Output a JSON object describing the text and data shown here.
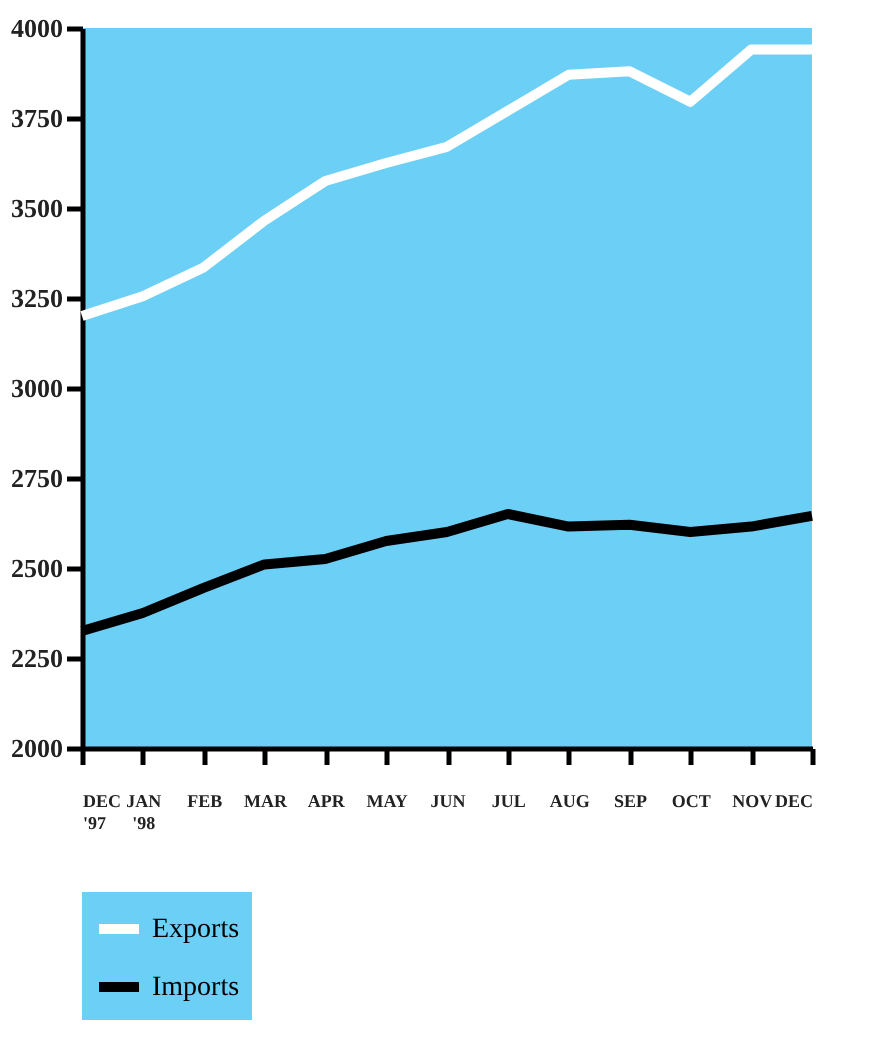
{
  "chart_data": {
    "type": "line",
    "categories": [
      "DEC\n'97",
      "JAN\n'98",
      "FEB",
      "MAR",
      "APR",
      "MAY",
      "JUN",
      "JUL",
      "AUG",
      "SEP",
      "OCT",
      "NOV",
      "DEC"
    ],
    "series": [
      {
        "name": "Exports",
        "color": "#ffffff",
        "values": [
          3200,
          3255,
          3335,
          3465,
          3575,
          3625,
          3670,
          3770,
          3870,
          3880,
          3795,
          3940,
          3940
        ]
      },
      {
        "name": "Imports",
        "color": "#000000",
        "values": [
          2325,
          2375,
          2445,
          2510,
          2525,
          2575,
          2600,
          2650,
          2615,
          2620,
          2600,
          2615,
          2645
        ]
      }
    ],
    "ylim": [
      2000,
      4000
    ],
    "yticks": [
      2000,
      2250,
      2500,
      2750,
      3000,
      3250,
      3500,
      3750,
      4000
    ],
    "grid": false,
    "legend": "bottom left",
    "marker": "none",
    "line_style": "solid"
  }
}
